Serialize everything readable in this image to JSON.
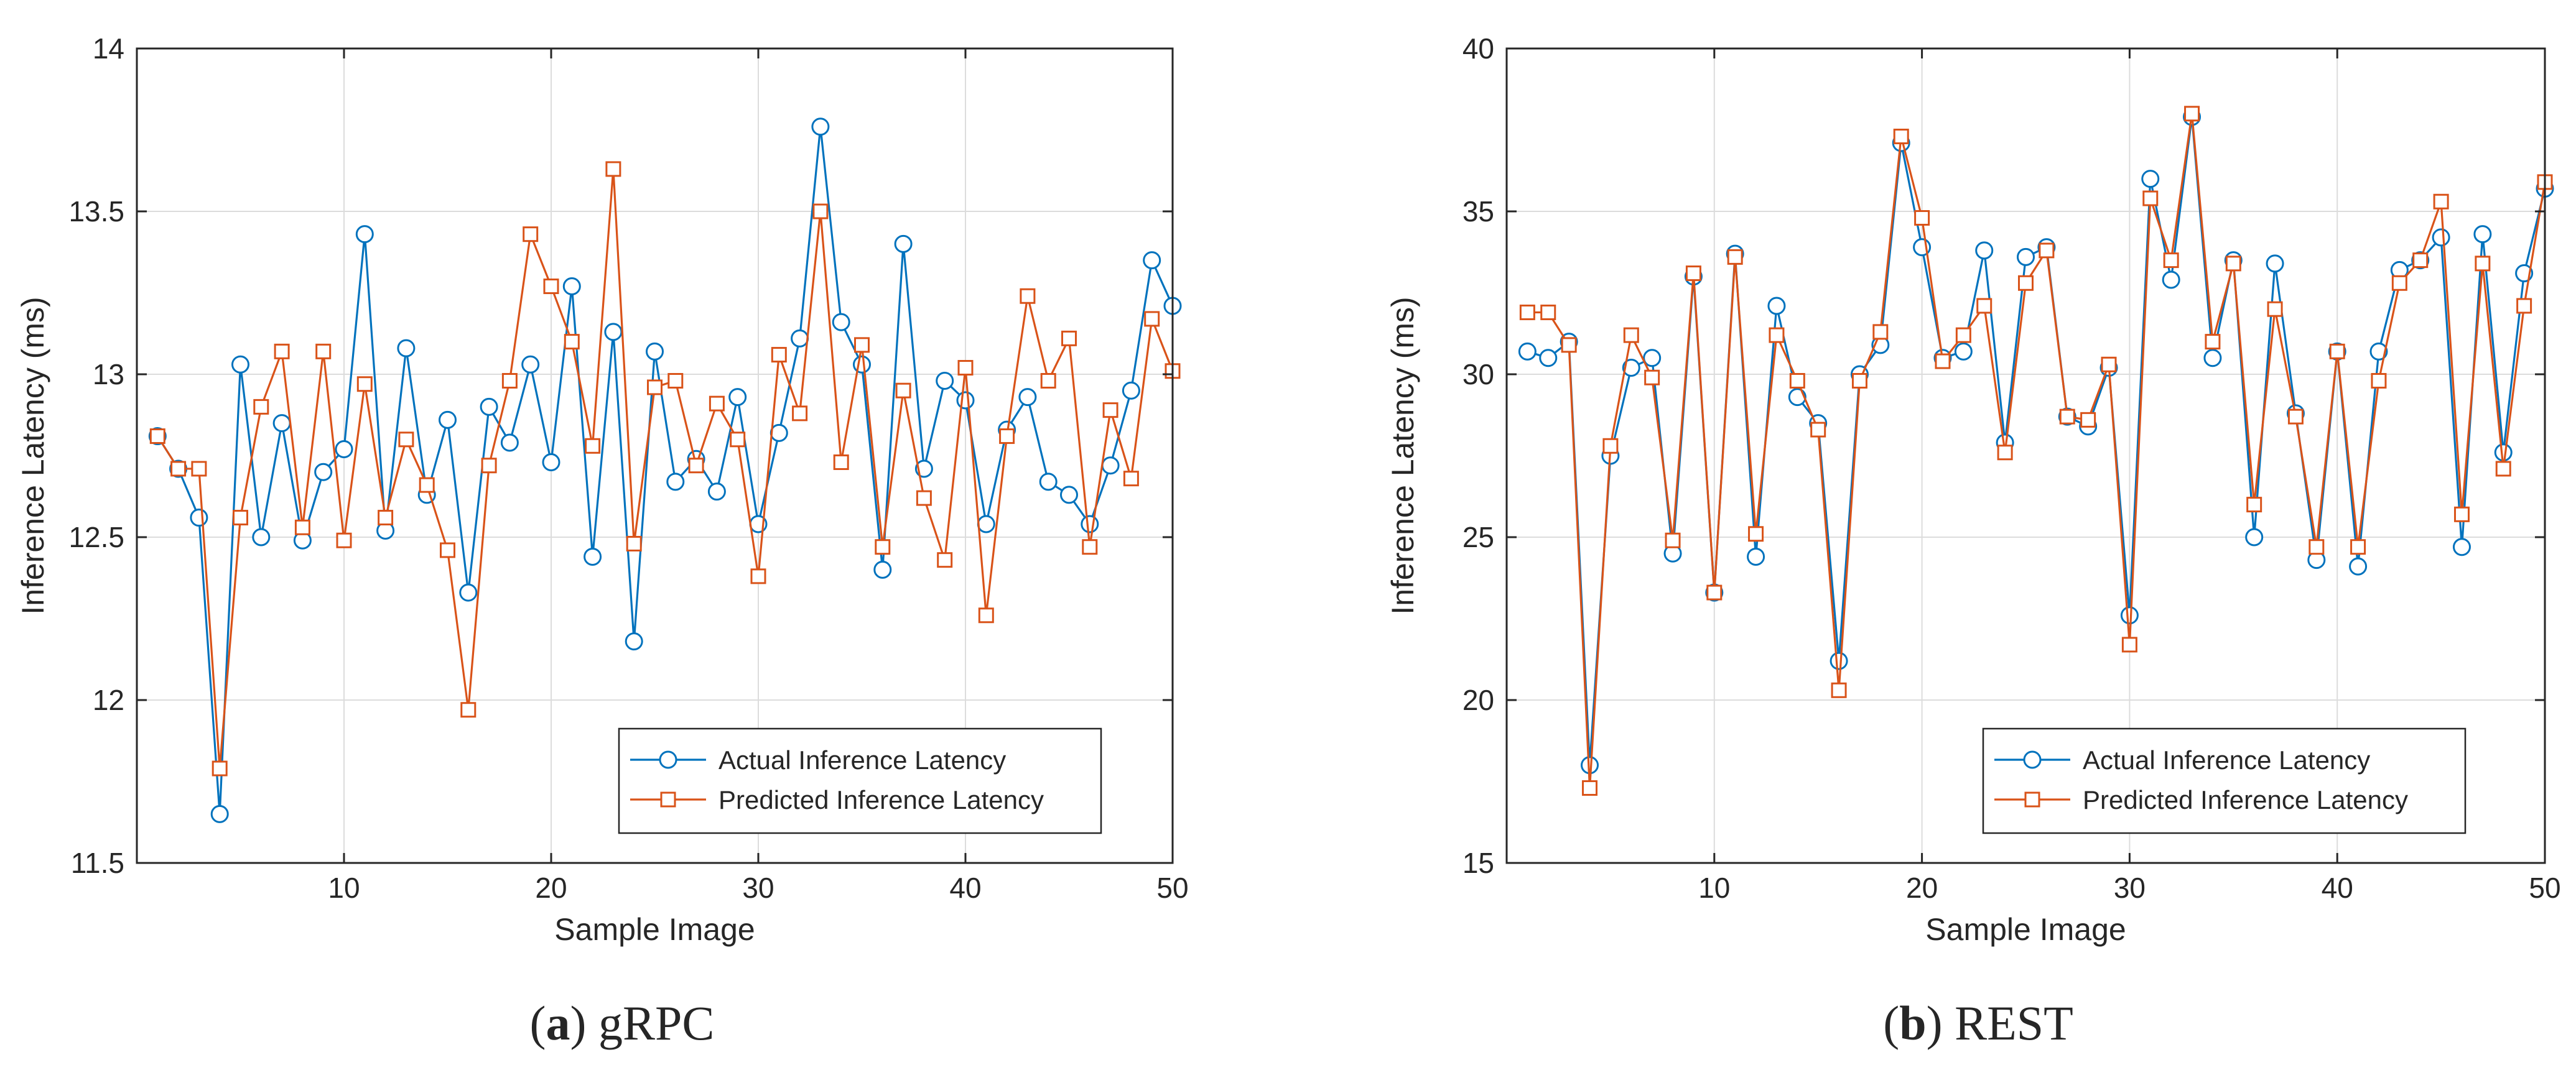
{
  "chart_data": [
    {
      "type": "line",
      "panel": "a",
      "caption_letter": "a",
      "caption_text": "gRPC",
      "title": "",
      "xlabel": "Sample Image",
      "ylabel": "Inference Latency (ms)",
      "xlim": [
        0,
        50
      ],
      "ylim": [
        11.5,
        14
      ],
      "xticks": [
        10,
        20,
        30,
        40,
        50
      ],
      "yticks": [
        11.5,
        12,
        12.5,
        13,
        13.5,
        14
      ],
      "grid": true,
      "legend_position": "bottom-right",
      "x": [
        1,
        2,
        3,
        4,
        5,
        6,
        7,
        8,
        9,
        10,
        11,
        12,
        13,
        14,
        15,
        16,
        17,
        18,
        19,
        20,
        21,
        22,
        23,
        24,
        25,
        26,
        27,
        28,
        29,
        30,
        31,
        32,
        33,
        34,
        35,
        36,
        37,
        38,
        39,
        40,
        41,
        42,
        43,
        44,
        45,
        46,
        47,
        48,
        49,
        50
      ],
      "series": [
        {
          "name": "Actual Inference Latency",
          "color": "#0072BD",
          "marker": "circle",
          "values": [
            12.81,
            12.71,
            12.56,
            11.65,
            13.03,
            12.5,
            12.85,
            12.49,
            12.7,
            12.77,
            13.43,
            12.52,
            13.08,
            12.63,
            12.86,
            12.33,
            12.9,
            12.79,
            13.03,
            12.73,
            13.27,
            12.44,
            13.13,
            12.18,
            13.07,
            12.67,
            12.74,
            12.64,
            12.93,
            12.54,
            12.82,
            13.11,
            13.76,
            13.16,
            13.03,
            12.4,
            13.4,
            12.71,
            12.98,
            12.92,
            12.54,
            12.83,
            12.93,
            12.67,
            12.63,
            12.54,
            12.72,
            12.95,
            13.35,
            13.21
          ]
        },
        {
          "name": "Predicted Inference Latency",
          "color": "#D95319",
          "marker": "square",
          "values": [
            12.81,
            12.71,
            12.71,
            11.79,
            12.56,
            12.9,
            13.07,
            12.53,
            13.07,
            12.49,
            12.97,
            12.56,
            12.8,
            12.66,
            12.46,
            11.97,
            12.72,
            12.98,
            13.43,
            13.27,
            13.1,
            12.78,
            13.63,
            12.48,
            12.96,
            12.98,
            12.72,
            12.91,
            12.8,
            12.38,
            13.06,
            12.88,
            13.5,
            12.73,
            13.09,
            12.47,
            12.95,
            12.62,
            12.43,
            13.02,
            12.26,
            12.81,
            13.24,
            12.98,
            13.11,
            12.47,
            12.89,
            12.68,
            13.17,
            13.01
          ]
        }
      ]
    },
    {
      "type": "line",
      "panel": "b",
      "caption_letter": "b",
      "caption_text": "REST",
      "title": "",
      "xlabel": "Sample Image",
      "ylabel": "Inference Latency (ms)",
      "xlim": [
        0,
        50
      ],
      "ylim": [
        15,
        40
      ],
      "xticks": [
        10,
        20,
        30,
        40,
        50
      ],
      "yticks": [
        15,
        20,
        25,
        30,
        35,
        40
      ],
      "grid": true,
      "legend_position": "bottom-right",
      "x": [
        1,
        2,
        3,
        4,
        5,
        6,
        7,
        8,
        9,
        10,
        11,
        12,
        13,
        14,
        15,
        16,
        17,
        18,
        19,
        20,
        21,
        22,
        23,
        24,
        25,
        26,
        27,
        28,
        29,
        30,
        31,
        32,
        33,
        34,
        35,
        36,
        37,
        38,
        39,
        40,
        41,
        42,
        43,
        44,
        45,
        46,
        47,
        48,
        49,
        50
      ],
      "series": [
        {
          "name": "Actual Inference Latency",
          "color": "#0072BD",
          "marker": "circle",
          "values": [
            30.7,
            30.5,
            31.0,
            18.0,
            27.5,
            30.2,
            30.5,
            24.5,
            33.0,
            23.3,
            33.7,
            24.4,
            32.1,
            29.3,
            28.5,
            21.2,
            30.0,
            30.9,
            37.1,
            33.9,
            30.5,
            30.7,
            33.8,
            27.9,
            33.6,
            33.9,
            28.7,
            28.4,
            30.2,
            22.6,
            36.0,
            32.9,
            37.9,
            30.5,
            33.5,
            25.0,
            33.4,
            28.8,
            24.3,
            30.7,
            24.1,
            30.7,
            33.2,
            33.5,
            34.2,
            24.7,
            34.3,
            27.6,
            33.1,
            35.7
          ]
        },
        {
          "name": "Predicted Inference Latency",
          "color": "#D95319",
          "marker": "square",
          "values": [
            31.9,
            31.9,
            30.9,
            17.3,
            27.8,
            31.2,
            29.9,
            24.9,
            33.1,
            23.3,
            33.6,
            25.1,
            31.2,
            29.8,
            28.3,
            20.3,
            29.8,
            31.3,
            37.3,
            34.8,
            30.4,
            31.2,
            32.1,
            27.6,
            32.8,
            33.8,
            28.7,
            28.6,
            30.3,
            21.7,
            35.4,
            33.5,
            38.0,
            31.0,
            33.4,
            26.0,
            32.0,
            28.7,
            24.7,
            30.7,
            24.7,
            29.8,
            32.8,
            33.5,
            35.3,
            25.7,
            33.4,
            27.1,
            32.1,
            35.9
          ]
        }
      ]
    }
  ]
}
